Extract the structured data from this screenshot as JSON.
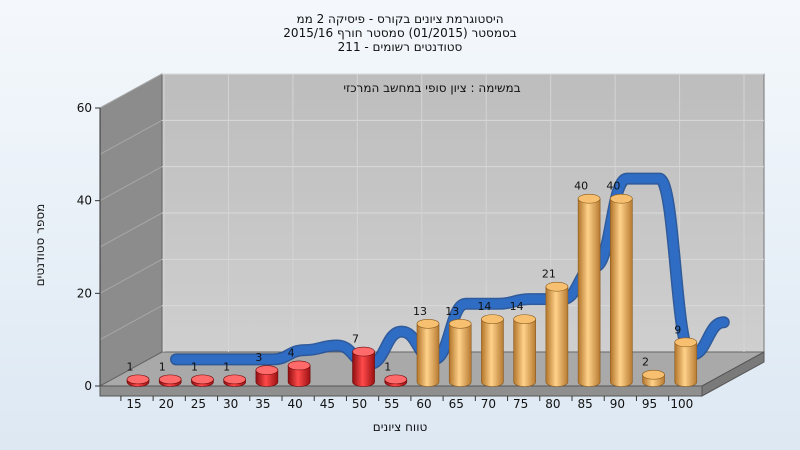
{
  "chart_data": {
    "type": "bar",
    "title_lines": [
      "היסטוגרמת ציונים בקורס - פיסיקה 2 ממ",
      "בסמסטר  (01/2015)  סמסטר חורף 2015/16",
      "211 - סטודנטים רשומים"
    ],
    "annotation": "במשימה : ציון סופי במחשב המרכזי",
    "xlabel": "טווח ציונים",
    "ylabel": "מספר סטודנטים",
    "categories": [
      "15",
      "20",
      "25",
      "30",
      "35",
      "40",
      "45",
      "50",
      "55",
      "60",
      "65",
      "70",
      "75",
      "80",
      "85",
      "90",
      "95",
      "100"
    ],
    "values": [
      1,
      1,
      1,
      1,
      3,
      4,
      0,
      7,
      1,
      13,
      13,
      14,
      14,
      21,
      40,
      40,
      2,
      9
    ],
    "value_labels": [
      "1",
      "1",
      "1",
      "1",
      "3",
      "4",
      "",
      "7",
      "1",
      "13",
      "13",
      "14",
      "14",
      "21",
      "40",
      "40",
      "2",
      "9"
    ],
    "ylim": [
      0,
      60
    ],
    "yticks": [
      0,
      20,
      40,
      60
    ],
    "fail_threshold": 55,
    "colors": {
      "fail": "#e41a1c",
      "pass": "#e5a84a",
      "trend": "#2f6cc4",
      "back_wall": "#c2c2c2",
      "side_wall": "#8c8c8c",
      "floor": "#a9a9a9"
    },
    "grid": true,
    "legend": "none"
  }
}
